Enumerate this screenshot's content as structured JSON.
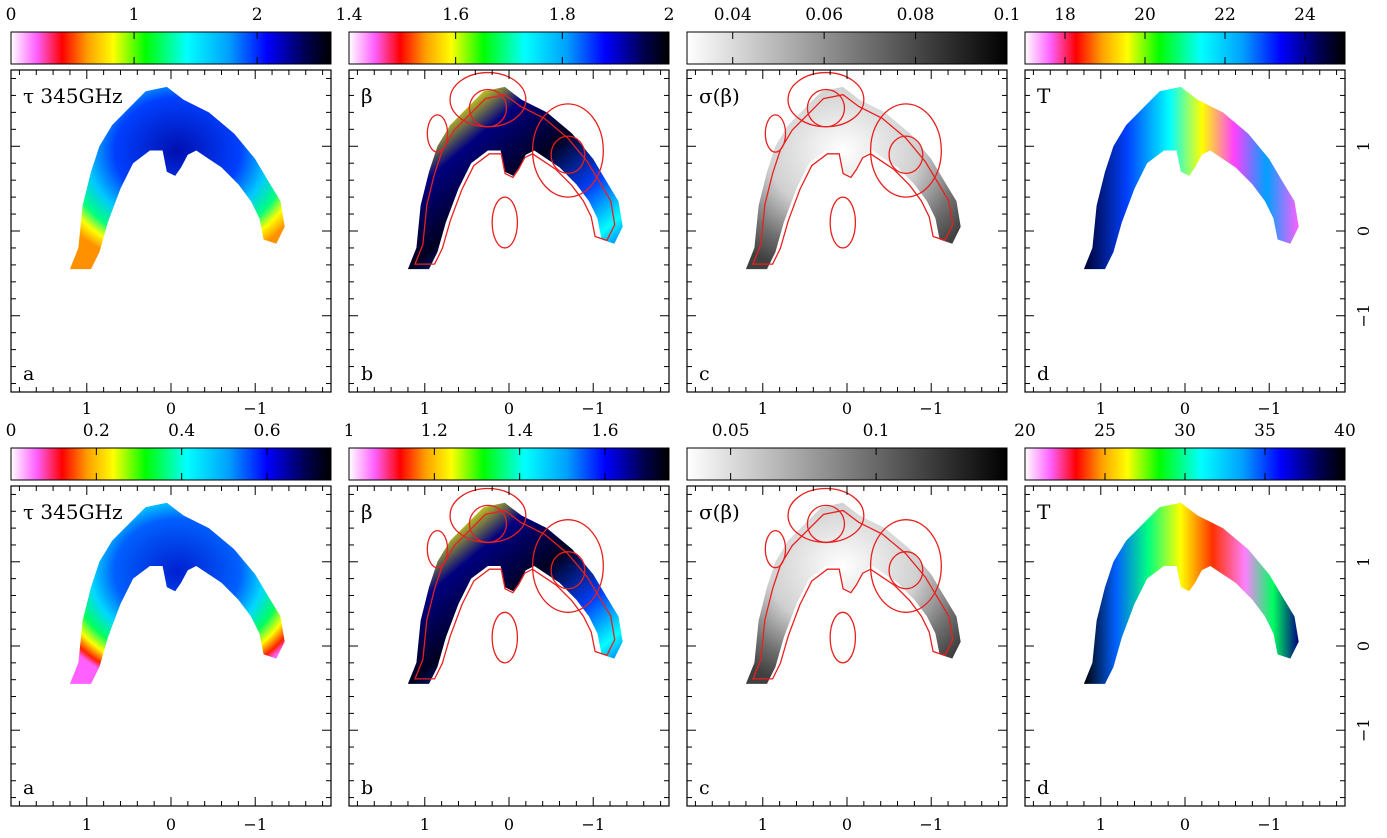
{
  "rows": [
    {
      "panels": [
        {
          "letter": "a",
          "label": "τ 345GHz",
          "colormap": "rainbow",
          "colorbar_ticks": [
            {
              "label": "0",
              "value": 0
            },
            {
              "label": "1",
              "value": 1
            },
            {
              "label": "2",
              "value": 2
            }
          ],
          "colorbar_range": [
            0,
            2.6
          ],
          "x_ticks": [
            "1",
            "0",
            "−1"
          ],
          "contours": false
        },
        {
          "letter": "b",
          "label": "β",
          "colormap": "rainbow",
          "colorbar_ticks": [
            {
              "label": "1.4",
              "value": 1.4
            },
            {
              "label": "1.6",
              "value": 1.6
            },
            {
              "label": "1.8",
              "value": 1.8
            },
            {
              "label": "2",
              "value": 2.0
            }
          ],
          "colorbar_range": [
            1.4,
            2.0
          ],
          "x_ticks": [
            "1",
            "0",
            "−1"
          ],
          "contours": true
        },
        {
          "letter": "c",
          "label": "σ(β)",
          "colormap": "gray",
          "colorbar_ticks": [
            {
              "label": "0.04",
              "value": 0.04
            },
            {
              "label": "0.06",
              "value": 0.06
            },
            {
              "label": "0.08",
              "value": 0.08
            },
            {
              "label": "0.1",
              "value": 0.1
            }
          ],
          "colorbar_range": [
            0.03,
            0.1
          ],
          "x_ticks": [
            "1",
            "0",
            "−1"
          ],
          "contours": true
        },
        {
          "letter": "d",
          "label": "T",
          "colormap": "rainbow",
          "colorbar_ticks": [
            {
              "label": "18",
              "value": 18
            },
            {
              "label": "20",
              "value": 20
            },
            {
              "label": "22",
              "value": 22
            },
            {
              "label": "24",
              "value": 24
            }
          ],
          "colorbar_range": [
            17,
            25
          ],
          "x_ticks": [
            "1",
            "0",
            "−1"
          ],
          "y_ticks": [
            "1",
            "0",
            "−1"
          ],
          "contours": false
        }
      ]
    },
    {
      "panels": [
        {
          "letter": "a",
          "label": "τ 345GHz",
          "colormap": "rainbow",
          "colorbar_ticks": [
            {
              "label": "0",
              "value": 0
            },
            {
              "label": "0.2",
              "value": 0.2
            },
            {
              "label": "0.4",
              "value": 0.4
            },
            {
              "label": "0.6",
              "value": 0.6
            }
          ],
          "colorbar_range": [
            0,
            0.75
          ],
          "x_ticks": [
            "1",
            "0",
            "−1"
          ],
          "contours": false
        },
        {
          "letter": "b",
          "label": "β",
          "colormap": "rainbow",
          "colorbar_ticks": [
            {
              "label": "1",
              "value": 1.0
            },
            {
              "label": "1.2",
              "value": 1.2
            },
            {
              "label": "1.4",
              "value": 1.4
            },
            {
              "label": "1.6",
              "value": 1.6
            }
          ],
          "colorbar_range": [
            1.0,
            1.75
          ],
          "x_ticks": [
            "1",
            "0",
            "−1"
          ],
          "contours": true
        },
        {
          "letter": "c",
          "label": "σ(β)",
          "colormap": "gray",
          "colorbar_ticks": [
            {
              "label": "0.05",
              "value": 0.05
            },
            {
              "label": "0.1",
              "value": 0.1
            }
          ],
          "colorbar_range": [
            0.035,
            0.145
          ],
          "x_ticks": [
            "1",
            "0",
            "−1"
          ],
          "contours": true
        },
        {
          "letter": "d",
          "label": "T",
          "colormap": "rainbow",
          "colorbar_ticks": [
            {
              "label": "20",
              "value": 20
            },
            {
              "label": "25",
              "value": 25
            },
            {
              "label": "30",
              "value": 30
            },
            {
              "label": "35",
              "value": 35
            },
            {
              "label": "40",
              "value": 40
            }
          ],
          "colorbar_range": [
            20,
            40
          ],
          "x_ticks": [
            "1",
            "0",
            "−1"
          ],
          "y_ticks": [
            "1",
            "0",
            "−1"
          ],
          "contours": false
        }
      ]
    }
  ],
  "colors": {
    "contour": "#e8201e",
    "frame": "#000000",
    "rainbow": [
      "#ffffff",
      "#ff60ff",
      "#ff0000",
      "#ffa000",
      "#ffff00",
      "#00ff00",
      "#00ffff",
      "#00a0ff",
      "#0000ff",
      "#000050",
      "#000000"
    ],
    "gray": [
      "#ffffff",
      "#000000"
    ]
  }
}
